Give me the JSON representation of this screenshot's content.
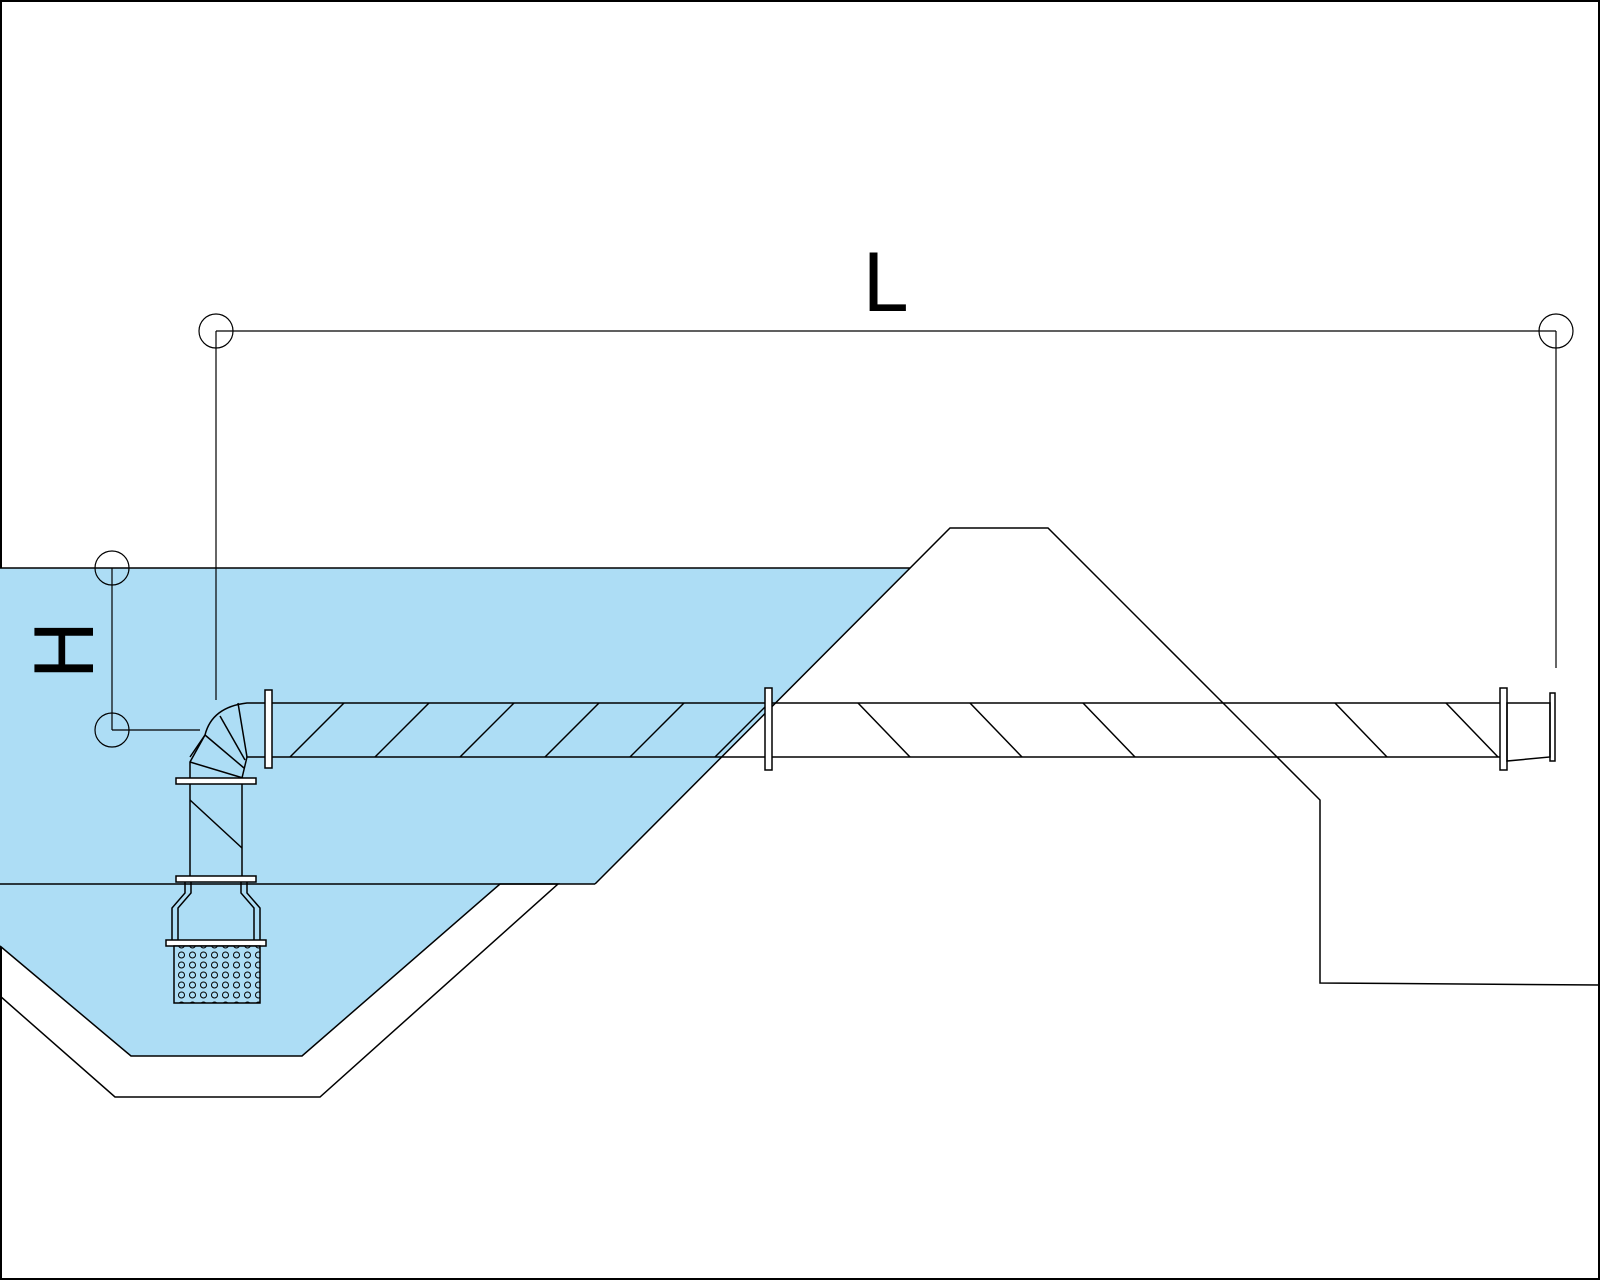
{
  "diagram": {
    "dimension_length_label": "L",
    "dimension_height_label": "H",
    "colors": {
      "water": "#ADDDF5",
      "line": "#000000",
      "background": "#FFFFFF"
    }
  }
}
